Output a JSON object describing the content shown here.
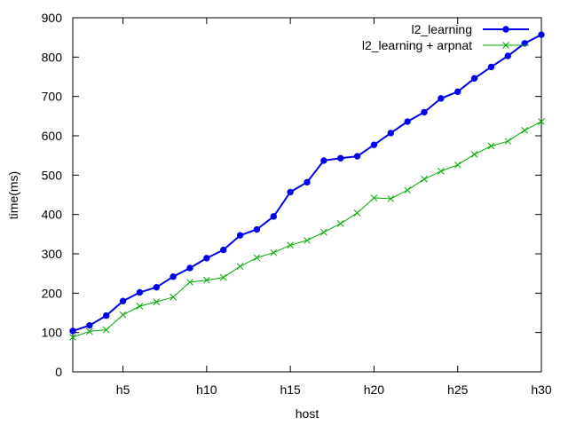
{
  "chart_data": {
    "type": "line",
    "xlabel": "host",
    "ylabel": "time(ms)",
    "x": [
      2,
      3,
      4,
      5,
      6,
      7,
      8,
      9,
      10,
      11,
      12,
      13,
      14,
      15,
      16,
      17,
      18,
      19,
      20,
      21,
      22,
      23,
      24,
      25,
      26,
      27,
      28,
      29,
      30
    ],
    "xlim": [
      2,
      30
    ],
    "ylim": [
      0,
      900
    ],
    "x_ticks": [
      {
        "value": 5,
        "label": "h5"
      },
      {
        "value": 10,
        "label": "h10"
      },
      {
        "value": 15,
        "label": "h15"
      },
      {
        "value": 20,
        "label": "h20"
      },
      {
        "value": 25,
        "label": "h25"
      },
      {
        "value": 30,
        "label": "h30"
      }
    ],
    "y_ticks": [
      {
        "value": 0,
        "label": "0"
      },
      {
        "value": 100,
        "label": "100"
      },
      {
        "value": 200,
        "label": "200"
      },
      {
        "value": 300,
        "label": "300"
      },
      {
        "value": 400,
        "label": "400"
      },
      {
        "value": 500,
        "label": "500"
      },
      {
        "value": 600,
        "label": "600"
      },
      {
        "value": 700,
        "label": "700"
      },
      {
        "value": 800,
        "label": "800"
      },
      {
        "value": 900,
        "label": "900"
      }
    ],
    "grid": false,
    "legend_position": "top-right",
    "series": [
      {
        "name": "l2_learning",
        "color": "#0000ee",
        "marker": "filled-circle",
        "values": [
          104,
          118,
          143,
          180,
          202,
          215,
          242,
          264,
          289,
          310,
          347,
          362,
          395,
          457,
          482,
          537,
          543,
          548,
          577,
          607,
          636,
          660,
          695,
          712,
          746,
          775,
          803,
          835,
          857
        ]
      },
      {
        "name": "l2_learning + arpnat",
        "color": "#00aa00",
        "marker": "cross",
        "values": [
          88,
          103,
          107,
          145,
          167,
          178,
          190,
          228,
          233,
          240,
          268,
          290,
          303,
          322,
          334,
          355,
          377,
          404,
          442,
          440,
          462,
          490,
          510,
          526,
          553,
          574,
          586,
          614,
          636
        ]
      }
    ]
  }
}
